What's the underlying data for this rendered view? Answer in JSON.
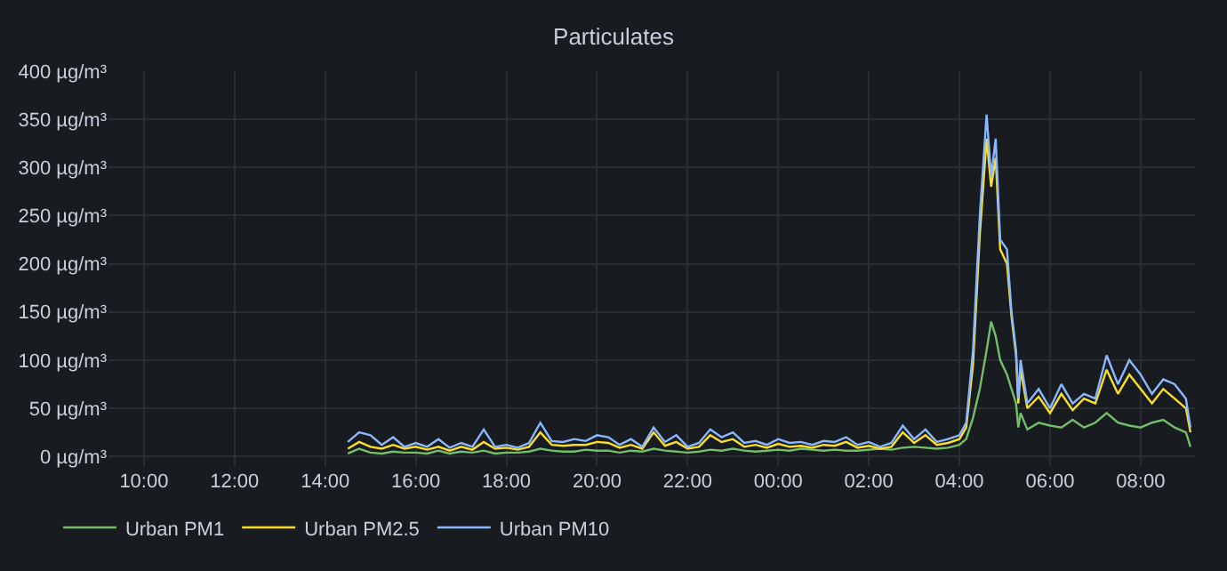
{
  "chart_data": {
    "type": "line",
    "title": "Particulates",
    "x": [
      "--01-01T14:30",
      "--01-01T14:45",
      "--01-01T15:00",
      "--01-01T15:15",
      "--01-01T15:30",
      "--01-01T15:45",
      "--01-01T16:00",
      "--01-01T16:15",
      "--01-01T16:30",
      "--01-01T16:45",
      "--01-01T17:00",
      "--01-01T17:15",
      "--01-01T17:30",
      "--01-01T17:45",
      "--01-01T18:00",
      "--01-01T18:15",
      "--01-01T18:30",
      "--01-01T18:45",
      "--01-01T19:00",
      "--01-01T19:15",
      "--01-01T19:30",
      "--01-01T19:45",
      "--01-01T20:00",
      "--01-01T20:15",
      "--01-01T20:30",
      "--01-01T20:45",
      "--01-01T21:00",
      "--01-01T21:15",
      "--01-01T21:30",
      "--01-01T21:45",
      "--01-01T22:00",
      "--01-01T22:15",
      "--01-01T22:30",
      "--01-01T22:45",
      "--01-01T23:00",
      "--01-01T23:15",
      "--01-01T23:30",
      "--01-01T23:45",
      "--01-02T00:00",
      "--01-02T00:15",
      "--01-02T00:30",
      "--01-02T00:45",
      "--01-02T01:00",
      "--01-02T01:15",
      "--01-02T01:30",
      "--01-02T01:45",
      "--01-02T02:00",
      "--01-02T02:15",
      "--01-02T02:30",
      "--01-02T02:45",
      "--01-02T03:00",
      "--01-02T03:15",
      "--01-02T03:30",
      "--01-02T03:45",
      "--01-02T04:00",
      "--01-02T04:09",
      "--01-02T04:18",
      "--01-02T04:27",
      "--01-02T04:36",
      "--01-02T04:42",
      "--01-02T04:48",
      "--01-02T04:54",
      "--01-02T05:03",
      "--01-02T05:09",
      "--01-02T05:15",
      "--01-02T05:18",
      "--01-02T05:21",
      "--01-02T05:30",
      "--01-02T05:45",
      "--01-02T06:00",
      "--01-02T06:15",
      "--01-02T06:30",
      "--01-02T06:45",
      "--01-02T07:00",
      "--01-02T07:15",
      "--01-02T07:30",
      "--01-02T07:45",
      "--01-02T08:00",
      "--01-02T08:15",
      "--01-02T08:30",
      "--01-02T08:45",
      "--01-02T09:00",
      "--01-02T09:06"
    ],
    "series": [
      {
        "name": "Urban PM1",
        "color": "#73bf69",
        "values": [
          3,
          8,
          4,
          3,
          5,
          4,
          4,
          3,
          6,
          3,
          5,
          4,
          6,
          3,
          4,
          4,
          5,
          8,
          6,
          5,
          5,
          7,
          6,
          6,
          4,
          6,
          5,
          8,
          6,
          5,
          4,
          5,
          7,
          6,
          8,
          6,
          5,
          6,
          7,
          6,
          8,
          7,
          6,
          7,
          6,
          6,
          7,
          8,
          7,
          9,
          10,
          9,
          8,
          9,
          12,
          18,
          40,
          70,
          110,
          140,
          125,
          100,
          85,
          70,
          55,
          30,
          45,
          28,
          35,
          32,
          30,
          38,
          30,
          35,
          45,
          35,
          32,
          30,
          35,
          38,
          30,
          25,
          10
        ]
      },
      {
        "name": "Urban PM2.5",
        "color": "#fade2a",
        "values": [
          8,
          15,
          10,
          8,
          12,
          8,
          10,
          7,
          10,
          6,
          10,
          7,
          15,
          8,
          9,
          7,
          10,
          25,
          12,
          11,
          12,
          12,
          15,
          14,
          9,
          12,
          8,
          25,
          11,
          15,
          8,
          10,
          22,
          15,
          18,
          10,
          12,
          9,
          13,
          10,
          11,
          9,
          12,
          11,
          15,
          9,
          11,
          8,
          10,
          25,
          14,
          22,
          12,
          14,
          18,
          30,
          95,
          230,
          330,
          280,
          310,
          215,
          200,
          145,
          105,
          55,
          90,
          50,
          62,
          45,
          65,
          48,
          60,
          55,
          90,
          65,
          85,
          70,
          55,
          70,
          60,
          50,
          25
        ]
      },
      {
        "name": "Urban PM10",
        "color": "#8ab8ff",
        "values": [
          15,
          25,
          22,
          12,
          20,
          10,
          14,
          10,
          18,
          9,
          14,
          10,
          28,
          10,
          12,
          9,
          14,
          35,
          16,
          15,
          18,
          16,
          22,
          20,
          12,
          18,
          10,
          30,
          15,
          22,
          10,
          14,
          28,
          20,
          25,
          14,
          16,
          12,
          18,
          14,
          15,
          12,
          16,
          15,
          20,
          12,
          15,
          10,
          14,
          32,
          18,
          28,
          15,
          18,
          22,
          35,
          110,
          250,
          355,
          290,
          330,
          225,
          215,
          150,
          110,
          60,
          100,
          55,
          70,
          50,
          75,
          55,
          65,
          60,
          105,
          75,
          100,
          85,
          65,
          80,
          75,
          60,
          30
        ]
      }
    ],
    "xlim": [
      "--01-01T09:13",
      "--01-02T09:12"
    ],
    "xticks": [
      {
        "value": "--01-01T10:00",
        "label": "10:00"
      },
      {
        "value": "--01-01T12:00",
        "label": "12:00"
      },
      {
        "value": "--01-01T14:00",
        "label": "14:00"
      },
      {
        "value": "--01-01T16:00",
        "label": "16:00"
      },
      {
        "value": "--01-01T18:00",
        "label": "18:00"
      },
      {
        "value": "--01-01T20:00",
        "label": "20:00"
      },
      {
        "value": "--01-01T22:00",
        "label": "22:00"
      },
      {
        "value": "--01-02T00:00",
        "label": "00:00"
      },
      {
        "value": "--01-02T02:00",
        "label": "02:00"
      },
      {
        "value": "--01-02T04:00",
        "label": "04:00"
      },
      {
        "value": "--01-02T06:00",
        "label": "06:00"
      },
      {
        "value": "--01-02T08:00",
        "label": "08:00"
      }
    ],
    "ylim": [
      -10,
      400
    ],
    "yticks": [
      {
        "value": 0,
        "label": "0 µg/m³"
      },
      {
        "value": 50,
        "label": "50 µg/m³"
      },
      {
        "value": 100,
        "label": "100 µg/m³"
      },
      {
        "value": 150,
        "label": "150 µg/m³"
      },
      {
        "value": 200,
        "label": "200 µg/m³"
      },
      {
        "value": 250,
        "label": "250 µg/m³"
      },
      {
        "value": 300,
        "label": "300 µg/m³"
      },
      {
        "value": 350,
        "label": "350 µg/m³"
      },
      {
        "value": 400,
        "label": "400 µg/m³"
      }
    ],
    "grid": true,
    "legend": "bottom left",
    "marker": "none",
    "line_style": "solid"
  }
}
